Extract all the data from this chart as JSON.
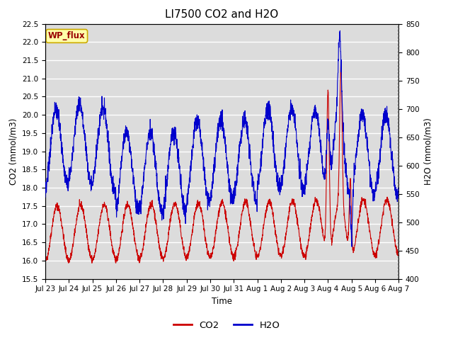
{
  "title": "LI7500 CO2 and H2O",
  "ylabel_left": "CO2 (mmol/m3)",
  "ylabel_right": "H2O (mmol/m3)",
  "xlabel": "Time",
  "ylim_left": [
    15.5,
    22.5
  ],
  "ylim_right": [
    400,
    850
  ],
  "yticks_left": [
    15.5,
    16.0,
    16.5,
    17.0,
    17.5,
    18.0,
    18.5,
    19.0,
    19.5,
    20.0,
    20.5,
    21.0,
    21.5,
    22.0,
    22.5
  ],
  "yticks_right": [
    400,
    450,
    500,
    550,
    600,
    650,
    700,
    750,
    800,
    850
  ],
  "xtick_labels": [
    "Jul 23",
    "Jul 24",
    "Jul 25",
    "Jul 26",
    "Jul 27",
    "Jul 28",
    "Jul 29",
    "Jul 30",
    "Jul 31",
    "Aug 1",
    "Aug 2",
    "Aug 3",
    "Aug 4",
    "Aug 5",
    "Aug 6",
    "Aug 7"
  ],
  "annotation_text": "WP_flux",
  "annotation_bg": "#FFFFAA",
  "annotation_border": "#CCAA00",
  "line_co2_color": "#CC0000",
  "line_h2o_color": "#0000CC",
  "legend_co2": "CO2",
  "legend_h2o": "H2O",
  "fig_bg": "#FFFFFF",
  "plot_bg": "#DCDCDC",
  "grid_color": "#FFFFFF",
  "title_fontsize": 11
}
